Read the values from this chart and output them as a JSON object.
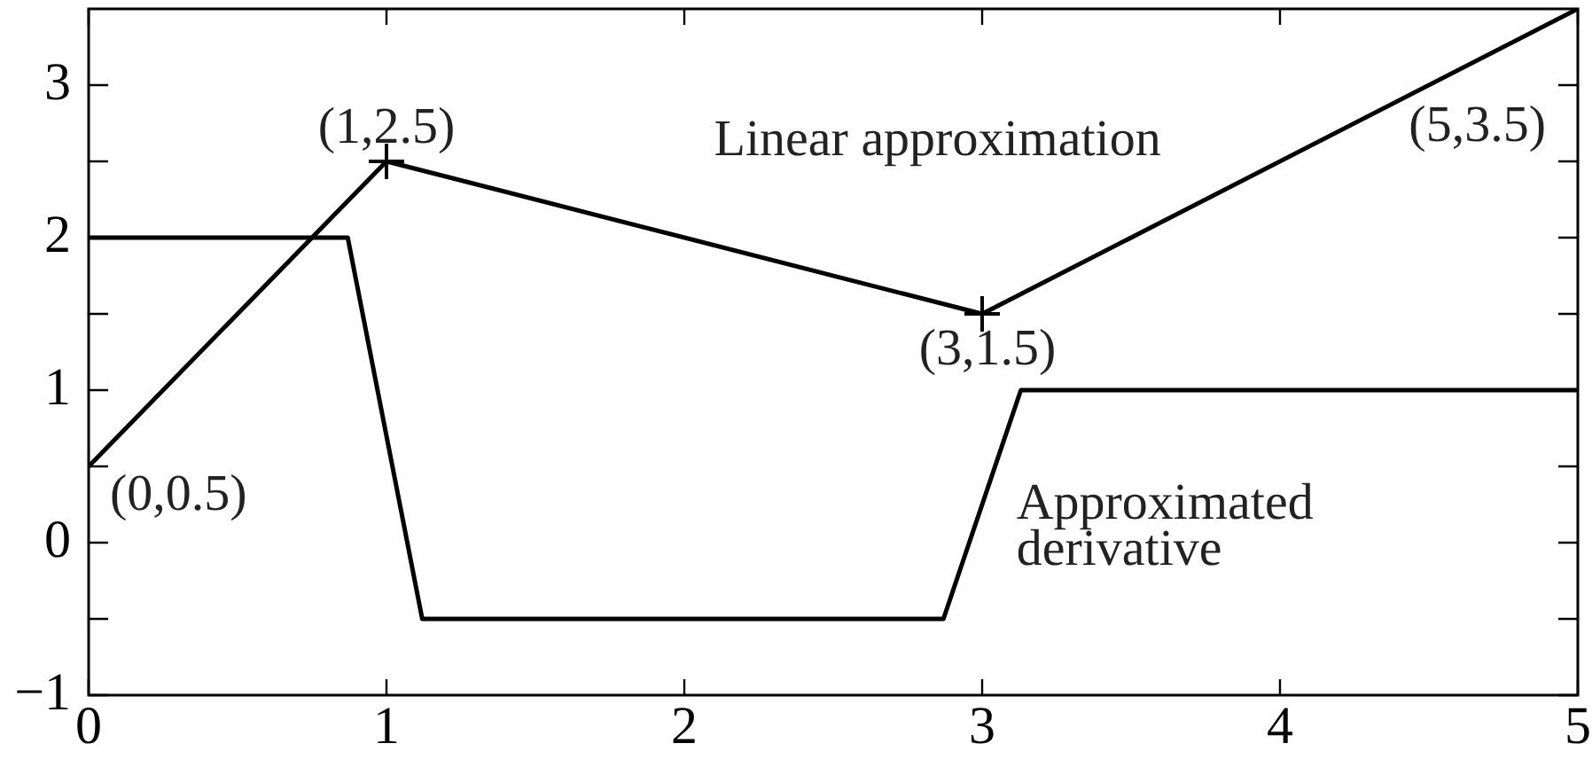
{
  "chart_data": {
    "type": "line",
    "series": [
      {
        "color": "#000000",
        "x": [
          0,
          1,
          3,
          5
        ],
        "values": [
          0.5,
          2.5,
          1.5,
          3.5
        ],
        "marker": "none"
      },
      {
        "type": "scatter",
        "color": "#000000",
        "x": [
          1,
          3
        ],
        "values": [
          2.5,
          1.5
        ],
        "marker": "cross"
      },
      {
        "color": "#000000",
        "x": [
          0,
          0.87,
          1.12,
          2.87,
          3.13,
          5
        ],
        "values": [
          2,
          2,
          -0.5,
          -0.5,
          1,
          1
        ],
        "marker": "none"
      }
    ],
    "xlim": [
      0,
      5
    ],
    "xticks": [
      0,
      1,
      2,
      3,
      4,
      5
    ],
    "ylim": [
      -1,
      3.5
    ],
    "yticks": [
      -1,
      {
        "value": -0.5,
        "label": null
      },
      0,
      {
        "value": 0.5,
        "label": null
      },
      1,
      {
        "value": 1.5,
        "label": null
      },
      2,
      {
        "value": 2.5,
        "label": null
      },
      3
    ],
    "line_style": "solid",
    "annotations": [
      {
        "text": "(0,0.5)",
        "x": 0,
        "y": 0.5
      },
      {
        "text": "(1,2.5)",
        "x": 1,
        "y": 2.5
      },
      {
        "text": "(3,1.5)",
        "x": 3,
        "y": 1.5
      },
      {
        "text": "(5,3.5)",
        "x": 5,
        "y": 3.5
      },
      "Linear approximation",
      "Approximated\nderivative"
    ]
  }
}
